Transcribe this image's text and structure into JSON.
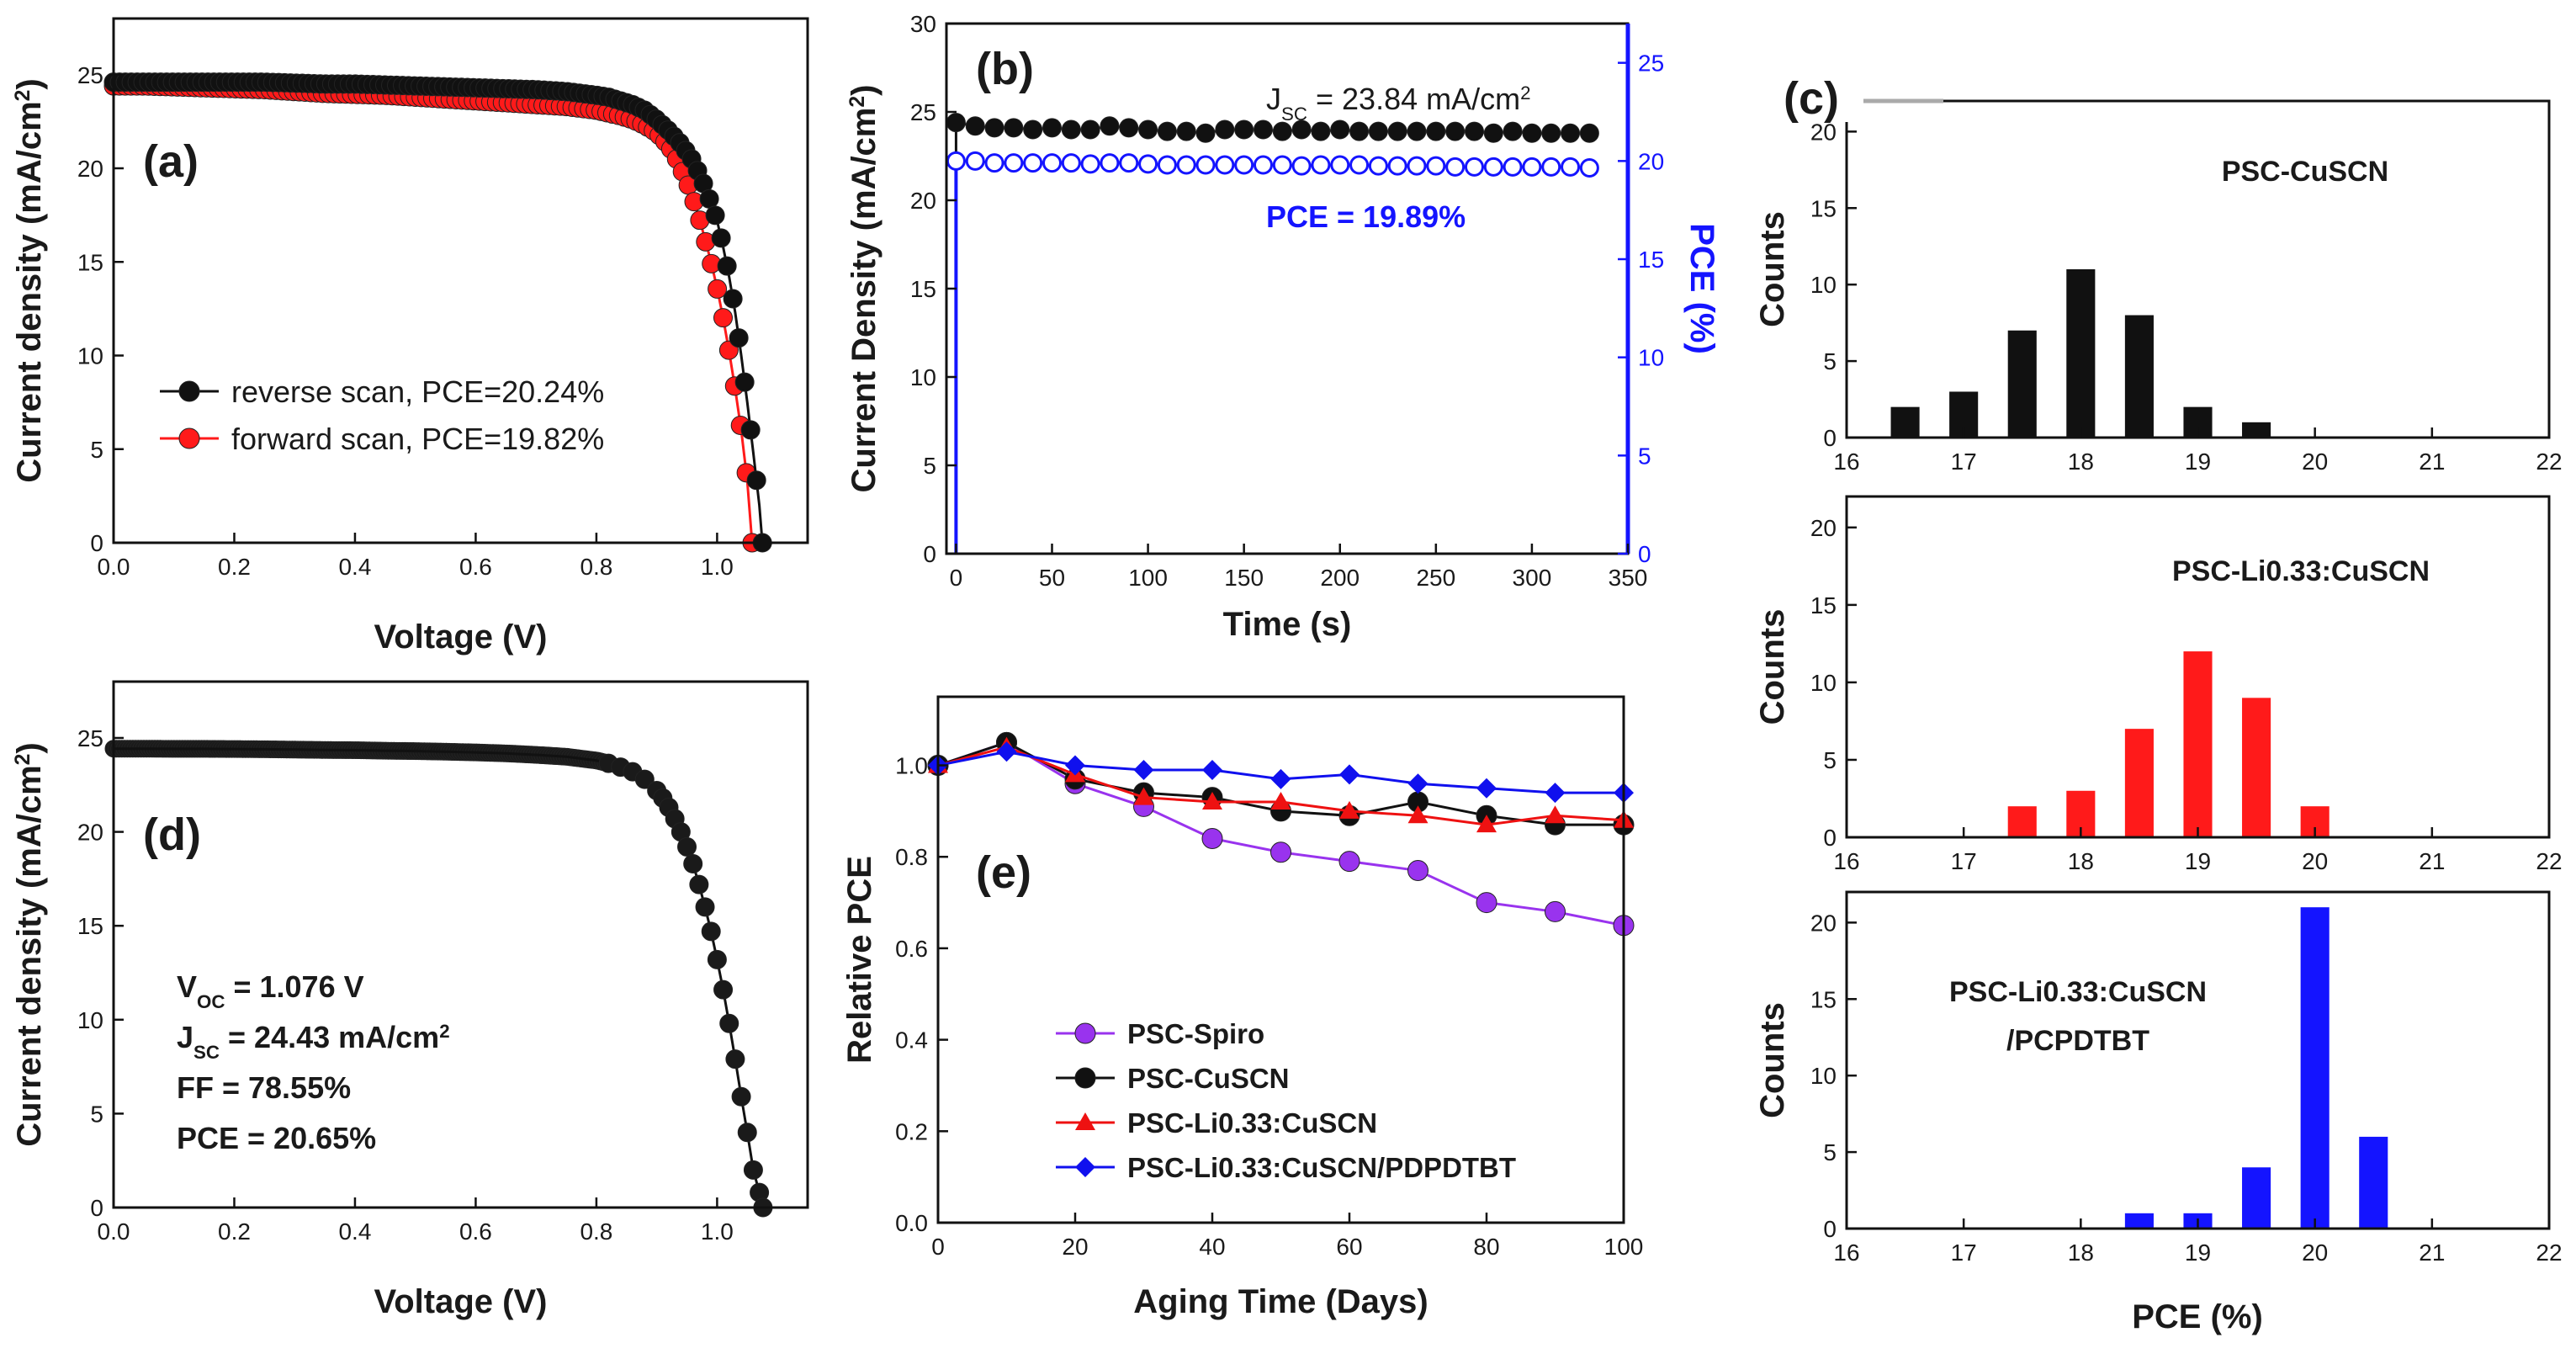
{
  "colors": {
    "black": "#111111",
    "red": "#ff1a1a",
    "blue": "#1414ff",
    "purple": "#9933ee",
    "red_marker": "#ee1111",
    "blue_marker": "#1010ee"
  },
  "chart_data": [
    {
      "id": "a",
      "panel_label": "(a)",
      "type": "line",
      "xlabel": "Voltage (V)",
      "ylabel": "Current density (mA/cm²)",
      "xlim": [
        0,
        1.15
      ],
      "ylim": [
        0,
        28
      ],
      "xticks": [
        "0.0",
        "0.2",
        "0.4",
        "0.6",
        "0.8",
        "1.0"
      ],
      "xtick_values": [
        0,
        0.2,
        0.4,
        0.6,
        0.8,
        1.0
      ],
      "yticks": [
        "0",
        "5",
        "10",
        "15",
        "20",
        "25"
      ],
      "ytick_values": [
        0,
        5,
        10,
        15,
        20,
        25
      ],
      "series": [
        {
          "name": "reverse scan, PCE=20.24%",
          "color": "#111111",
          "x": [
            0,
            0.05,
            0.1,
            0.15,
            0.2,
            0.25,
            0.3,
            0.35,
            0.4,
            0.45,
            0.5,
            0.55,
            0.6,
            0.65,
            0.7,
            0.75,
            0.8,
            0.82,
            0.84,
            0.86,
            0.88,
            0.9,
            0.92,
            0.94,
            0.96,
            0.98,
            1.0,
            1.01,
            1.02,
            1.03,
            1.04,
            1.05,
            1.06,
            1.07,
            1.075
          ],
          "y": [
            24.6,
            24.6,
            24.6,
            24.6,
            24.6,
            24.6,
            24.55,
            24.5,
            24.5,
            24.45,
            24.4,
            24.35,
            24.3,
            24.25,
            24.2,
            24.1,
            23.9,
            23.8,
            23.6,
            23.4,
            23.1,
            22.6,
            22.0,
            21.3,
            20.4,
            19.0,
            17.2,
            15.8,
            14.2,
            12.3,
            10.0,
            7.5,
            4.8,
            2.0,
            0
          ]
        },
        {
          "name": "forward scan, PCE=19.82%",
          "color": "#ff1a1a",
          "x": [
            0,
            0.05,
            0.1,
            0.15,
            0.2,
            0.25,
            0.3,
            0.35,
            0.4,
            0.45,
            0.5,
            0.55,
            0.6,
            0.65,
            0.7,
            0.75,
            0.8,
            0.82,
            0.84,
            0.86,
            0.88,
            0.9,
            0.92,
            0.93,
            0.94,
            0.95,
            0.96,
            0.97,
            0.98,
            0.99,
            1.0,
            1.01,
            1.02,
            1.03,
            1.04,
            1.05,
            1.058
          ],
          "y": [
            24.4,
            24.4,
            24.35,
            24.3,
            24.25,
            24.2,
            24.1,
            24.0,
            23.95,
            23.9,
            23.8,
            23.7,
            23.6,
            23.5,
            23.4,
            23.3,
            23.1,
            22.95,
            22.8,
            22.6,
            22.3,
            21.9,
            21.2,
            20.7,
            20.0,
            19.3,
            18.4,
            17.4,
            16.2,
            15.0,
            13.6,
            12.0,
            10.2,
            8.2,
            6.0,
            3.3,
            0
          ]
        }
      ]
    },
    {
      "id": "b",
      "panel_label": "(b)",
      "type": "line",
      "xlabel": "Time (s)",
      "ylabel": "Current Density (mA/cm²)",
      "ylabel_right": "PCE (%)",
      "xlim": [
        -5,
        350
      ],
      "ylim": [
        0,
        30
      ],
      "ylim_right": [
        0,
        27
      ],
      "xticks": [
        "0",
        "50",
        "100",
        "150",
        "200",
        "250",
        "300",
        "350"
      ],
      "xtick_values": [
        0,
        50,
        100,
        150,
        200,
        250,
        300,
        350
      ],
      "yticks": [
        "0",
        "5",
        "10",
        "15",
        "20",
        "25",
        "30"
      ],
      "ytick_values": [
        0,
        5,
        10,
        15,
        20,
        25,
        30
      ],
      "yticks_right": [
        "0",
        "5",
        "10",
        "15",
        "20",
        "25"
      ],
      "ytick_right_values": [
        0,
        5,
        10,
        15,
        20,
        25
      ],
      "annotation_jsc_prefix": "J",
      "annotation_jsc_sub": "SC",
      "annotation_jsc_value": " = 23.84 mA/cm",
      "annotation_jsc_sup": "2",
      "annotation_pce": "PCE = 19.89%",
      "series": [
        {
          "name": "Current density",
          "color": "#111111",
          "axis": "left",
          "x": [
            0,
            10,
            20,
            30,
            40,
            50,
            60,
            70,
            80,
            90,
            100,
            110,
            120,
            130,
            140,
            150,
            160,
            170,
            180,
            190,
            200,
            210,
            220,
            230,
            240,
            250,
            260,
            270,
            280,
            290,
            300,
            310,
            320,
            330
          ],
          "y": [
            24.4,
            24.2,
            24.1,
            24.1,
            24.0,
            24.1,
            24.0,
            24.0,
            24.2,
            24.1,
            24.0,
            23.9,
            23.9,
            23.8,
            24.0,
            24.0,
            24.0,
            23.9,
            24.0,
            23.9,
            24.0,
            23.9,
            23.9,
            23.9,
            23.9,
            23.9,
            23.9,
            23.9,
            23.8,
            23.9,
            23.8,
            23.8,
            23.8,
            23.8
          ]
        },
        {
          "name": "PCE",
          "color": "#1414ff",
          "axis": "right",
          "x": [
            0,
            10,
            20,
            30,
            40,
            50,
            60,
            70,
            80,
            90,
            100,
            110,
            120,
            130,
            140,
            150,
            160,
            170,
            180,
            190,
            200,
            210,
            220,
            230,
            240,
            250,
            260,
            270,
            280,
            290,
            300,
            310,
            320,
            330
          ],
          "y": [
            20.0,
            20.0,
            19.9,
            19.9,
            19.9,
            19.9,
            19.9,
            19.85,
            19.9,
            19.9,
            19.85,
            19.8,
            19.8,
            19.8,
            19.8,
            19.8,
            19.8,
            19.8,
            19.75,
            19.8,
            19.8,
            19.8,
            19.75,
            19.75,
            19.75,
            19.75,
            19.7,
            19.7,
            19.7,
            19.7,
            19.7,
            19.7,
            19.7,
            19.65
          ]
        }
      ]
    },
    {
      "id": "c",
      "panel_label": "(c)",
      "type": "bar",
      "xlabel": "PCE (%)",
      "ylabel": "Counts",
      "xlim": [
        16,
        22
      ],
      "ylim": [
        0,
        22
      ],
      "xticks": [
        "16",
        "17",
        "18",
        "19",
        "20",
        "21",
        "22"
      ],
      "xtick_values": [
        16,
        17,
        18,
        19,
        20,
        21,
        22
      ],
      "yticks": [
        "0",
        "5",
        "10",
        "15",
        "20"
      ],
      "ytick_values": [
        0,
        5,
        10,
        15,
        20
      ],
      "subplots": [
        {
          "name": "PSC-CuSCN",
          "label_lines": [
            "PSC-CuSCN"
          ],
          "color": "#111111",
          "x": [
            16.5,
            17.0,
            17.5,
            18.0,
            18.5,
            19.0,
            19.5
          ],
          "values": [
            2,
            3,
            7,
            11,
            8,
            2,
            1
          ]
        },
        {
          "name": "PSC-Li0.33:CuSCN",
          "label_lines": [
            "PSC-Li0.33:CuSCN"
          ],
          "color": "#ff1a1a",
          "x": [
            17.5,
            18.0,
            18.5,
            19.0,
            19.5,
            20.0
          ],
          "values": [
            2,
            3,
            7,
            12,
            9,
            2
          ]
        },
        {
          "name": "PSC-Li0.33:CuSCN /PCPDTBT",
          "label_lines": [
            "PSC-Li0.33:CuSCN",
            "/PCPDTBT"
          ],
          "color": "#1414ff",
          "x": [
            18.5,
            19.0,
            19.5,
            20.0,
            20.5
          ],
          "values": [
            1,
            1,
            4,
            21,
            6
          ]
        }
      ]
    },
    {
      "id": "d",
      "panel_label": "(d)",
      "type": "line",
      "xlabel": "Voltage (V)",
      "ylabel": "Current density (mA/cm²)",
      "xlim": [
        0,
        1.15
      ],
      "ylim": [
        0,
        28
      ],
      "xticks": [
        "0.0",
        "0.2",
        "0.4",
        "0.6",
        "0.8",
        "1.0"
      ],
      "xtick_values": [
        0,
        0.2,
        0.4,
        0.6,
        0.8,
        1.0
      ],
      "yticks": [
        "0",
        "5",
        "10",
        "15",
        "20",
        "25"
      ],
      "ytick_values": [
        0,
        5,
        10,
        15,
        20,
        25
      ],
      "annotations": [
        {
          "main": "V",
          "sub": "OC",
          "rest": " = 1.076 V",
          "sup": ""
        },
        {
          "main": "J",
          "sub": "SC",
          "rest": " = 24.43 mA/cm",
          "sup": "2"
        },
        {
          "main": "FF = 78.55%",
          "sub": "",
          "rest": "",
          "sup": ""
        },
        {
          "main": "PCE = 20.65%",
          "sub": "",
          "rest": "",
          "sup": ""
        }
      ],
      "series": [
        {
          "name": "J-V",
          "color": "#111111",
          "x": [
            0,
            0.05,
            0.1,
            0.15,
            0.2,
            0.25,
            0.3,
            0.35,
            0.4,
            0.45,
            0.5,
            0.55,
            0.6,
            0.65,
            0.7,
            0.75,
            0.8,
            0.82,
            0.84,
            0.86,
            0.88,
            0.9,
            0.91,
            0.92,
            0.93,
            0.94,
            0.95,
            0.96,
            0.97,
            0.98,
            0.99,
            1.0,
            1.01,
            1.02,
            1.03,
            1.04,
            1.05,
            1.06,
            1.07,
            1.076
          ],
          "y": [
            24.43,
            24.43,
            24.42,
            24.42,
            24.41,
            24.4,
            24.38,
            24.36,
            24.35,
            24.32,
            24.3,
            24.27,
            24.23,
            24.18,
            24.1,
            24.0,
            23.8,
            23.65,
            23.45,
            23.2,
            22.8,
            22.2,
            21.8,
            21.3,
            20.7,
            20.0,
            19.2,
            18.3,
            17.2,
            16.0,
            14.7,
            13.2,
            11.6,
            9.8,
            7.9,
            5.9,
            4.0,
            2.0,
            0.8,
            0
          ]
        }
      ]
    },
    {
      "id": "e",
      "panel_label": "(e)",
      "type": "line",
      "xlabel": "Aging Time (Days)",
      "ylabel": "Relative PCE",
      "xlim": [
        0,
        100
      ],
      "ylim": [
        0,
        1.15
      ],
      "xticks": [
        "0",
        "20",
        "40",
        "60",
        "80",
        "100"
      ],
      "xtick_values": [
        0,
        20,
        40,
        60,
        80,
        100
      ],
      "yticks": [
        "0.0",
        "0.2",
        "0.4",
        "0.6",
        "0.8",
        "1.0"
      ],
      "ytick_values": [
        0,
        0.2,
        0.4,
        0.6,
        0.8,
        1.0
      ],
      "series": [
        {
          "name": "PSC-Spiro",
          "color": "#9933ee",
          "marker": "circle",
          "x": [
            0,
            10,
            20,
            30,
            40,
            50,
            60,
            70,
            80,
            90,
            100
          ],
          "y": [
            1.0,
            1.05,
            0.96,
            0.91,
            0.84,
            0.81,
            0.79,
            0.77,
            0.7,
            0.68,
            0.65
          ]
        },
        {
          "name": "PSC-CuSCN",
          "color": "#111111",
          "marker": "circle",
          "x": [
            0,
            10,
            20,
            30,
            40,
            50,
            60,
            70,
            80,
            90,
            100
          ],
          "y": [
            1.0,
            1.05,
            0.97,
            0.94,
            0.93,
            0.9,
            0.89,
            0.92,
            0.89,
            0.87,
            0.87
          ]
        },
        {
          "name": "PSC-Li0.33:CuSCN",
          "color": "#ee1111",
          "marker": "triangle",
          "x": [
            0,
            10,
            20,
            30,
            40,
            50,
            60,
            70,
            80,
            90,
            100
          ],
          "y": [
            1.0,
            1.04,
            0.98,
            0.93,
            0.92,
            0.92,
            0.9,
            0.89,
            0.87,
            0.89,
            0.88
          ]
        },
        {
          "name": "PSC-Li0.33:CuSCN/PDPDTBT",
          "color": "#1010ee",
          "marker": "diamond",
          "x": [
            0,
            10,
            20,
            30,
            40,
            50,
            60,
            70,
            80,
            90,
            100
          ],
          "y": [
            1.0,
            1.03,
            1.0,
            0.99,
            0.99,
            0.97,
            0.98,
            0.96,
            0.95,
            0.94,
            0.94
          ]
        }
      ]
    }
  ]
}
